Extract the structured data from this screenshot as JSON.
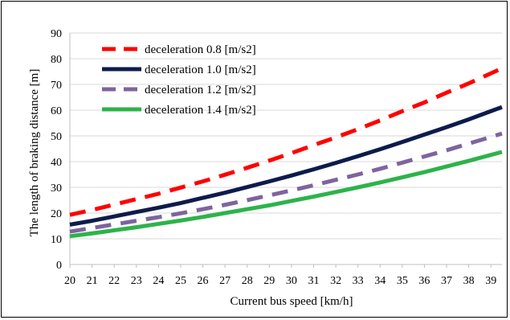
{
  "chart_data": {
    "type": "line",
    "title": "",
    "xlabel": "Current bus speed [km/h]",
    "ylabel": "The length of braking distance [m]",
    "x": [
      20,
      21,
      22,
      23,
      24,
      25,
      26,
      27,
      28,
      29,
      30,
      31,
      32,
      33,
      34,
      35,
      36,
      37,
      38,
      39
    ],
    "x_range_end": 39.5,
    "xlim": [
      20,
      39.5
    ],
    "ylim": [
      0,
      90
    ],
    "y_ticks": [
      0,
      10,
      20,
      30,
      40,
      50,
      60,
      70,
      80,
      90
    ],
    "grid": "horizontal",
    "legend_position": "top-left",
    "series": [
      {
        "name": "deceleration 0.8 [m/s2]",
        "color": "#ff0000",
        "style": "dashed",
        "values": [
          19.3,
          21.2,
          23.3,
          25.4,
          27.5,
          29.9,
          32.3,
          34.9,
          37.6,
          40.4,
          43.3,
          46.4,
          49.4,
          52.6,
          56.0,
          59.6,
          63.0,
          66.8,
          70.4,
          74.3
        ]
      },
      {
        "name": "deceleration 1.0 [m/s2]",
        "color": "#0d1b4c",
        "style": "solid",
        "values": [
          15.5,
          17.0,
          18.7,
          20.4,
          22.1,
          23.9,
          25.9,
          27.9,
          30.1,
          32.3,
          34.6,
          37.0,
          39.5,
          42.1,
          44.8,
          47.6,
          50.5,
          53.4,
          56.4,
          59.6
        ]
      },
      {
        "name": "deceleration 1.2 [m/s2]",
        "color": "#7e649e",
        "style": "dashed",
        "values": [
          12.8,
          14.2,
          15.6,
          17.0,
          18.4,
          19.9,
          21.5,
          23.2,
          25.0,
          26.9,
          28.8,
          30.8,
          32.9,
          35.0,
          37.2,
          39.6,
          42.0,
          44.4,
          47.0,
          49.6
        ]
      },
      {
        "name": "deceleration 1.4 [m/s2]",
        "color": "#2db34a",
        "style": "solid",
        "values": [
          11.0,
          12.1,
          13.3,
          14.5,
          15.8,
          17.1,
          18.5,
          20.0,
          21.5,
          23.0,
          24.7,
          26.4,
          28.2,
          30.0,
          31.9,
          33.9,
          35.9,
          38.1,
          40.3,
          42.6
        ]
      }
    ]
  }
}
